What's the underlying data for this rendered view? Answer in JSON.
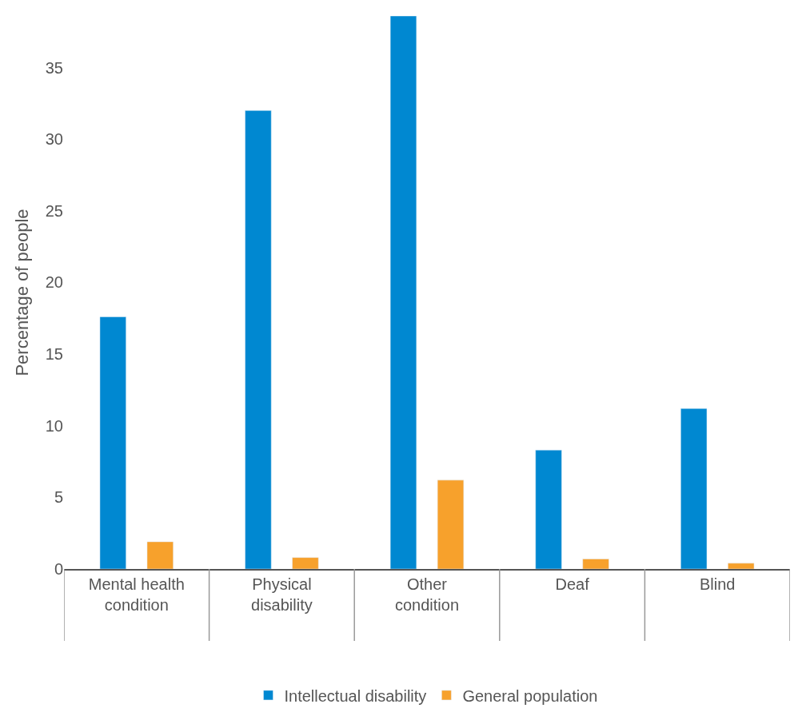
{
  "chart_data": {
    "type": "bar",
    "ylabel": "Percentage of people",
    "categories": [
      "Mental health condition",
      "Physical disability",
      "Other condition",
      "Deaf",
      "Blind"
    ],
    "series": [
      {
        "name": "Intellectual disability",
        "color": "#0088d1",
        "values": [
          17.6,
          32.0,
          38.6,
          8.3,
          11.2
        ]
      },
      {
        "name": "General population",
        "color": "#f7a12c",
        "values": [
          1.9,
          0.8,
          6.2,
          0.7,
          0.4
        ]
      }
    ],
    "ylim": [
      0,
      38.6
    ],
    "yticks": [
      0,
      5,
      10,
      15,
      20,
      25,
      30,
      35
    ],
    "legend": "bottom"
  }
}
